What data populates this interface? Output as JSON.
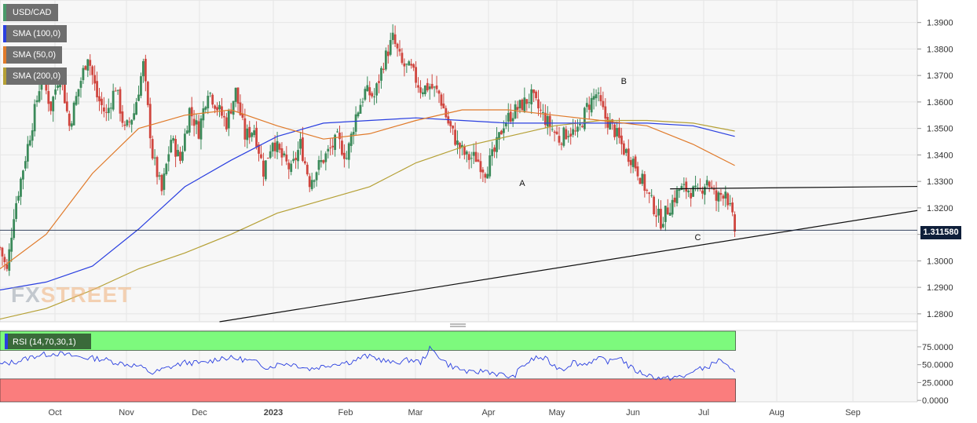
{
  "legend": [
    {
      "label": "USD/CAD",
      "color": "#4a9a6a"
    },
    {
      "label": "SMA (100,0)",
      "color": "#2a3fe0"
    },
    {
      "label": "SMA (50,0)",
      "color": "#e07a2a"
    },
    {
      "label": "SMA (200,0)",
      "color": "#b5a035"
    }
  ],
  "logo": {
    "part1": "FX",
    "part2": "STREET"
  },
  "current_price_label": "1.311580",
  "rsi_label": "RSI (14,70,30,1)",
  "annotations": [
    "A",
    "B",
    "C"
  ],
  "chart_data": {
    "type": "candlestick",
    "y_ticks": [
      "1.3900",
      "1.3800",
      "1.3700",
      "1.3600",
      "1.3500",
      "1.3400",
      "1.3300",
      "1.3200",
      "1.3100",
      "1.3000",
      "1.2900",
      "1.2800"
    ],
    "y_range": [
      1.277,
      1.3985
    ],
    "x_ticks": [
      "Oct",
      "Nov",
      "Dec",
      "2023",
      "Feb",
      "Mar",
      "Apr",
      "May",
      "Jun",
      "Jul",
      "Aug",
      "Sep"
    ],
    "current_price": 1.31158,
    "close_path": [
      [
        0,
        1.305
      ],
      [
        3,
        1.296
      ],
      [
        6,
        1.318
      ],
      [
        10,
        1.335
      ],
      [
        14,
        1.352
      ],
      [
        18,
        1.37
      ],
      [
        22,
        1.358
      ],
      [
        26,
        1.372
      ],
      [
        30,
        1.351
      ],
      [
        34,
        1.365
      ],
      [
        38,
        1.378
      ],
      [
        42,
        1.362
      ],
      [
        46,
        1.355
      ],
      [
        50,
        1.366
      ],
      [
        54,
        1.349
      ],
      [
        58,
        1.356
      ],
      [
        62,
        1.374
      ],
      [
        66,
        1.34
      ],
      [
        70,
        1.326
      ],
      [
        74,
        1.346
      ],
      [
        78,
        1.338
      ],
      [
        82,
        1.357
      ],
      [
        86,
        1.349
      ],
      [
        90,
        1.365
      ],
      [
        94,
        1.358
      ],
      [
        98,
        1.352
      ],
      [
        102,
        1.364
      ],
      [
        106,
        1.347
      ],
      [
        110,
        1.35
      ],
      [
        114,
        1.334
      ],
      [
        118,
        1.346
      ],
      [
        122,
        1.339
      ],
      [
        126,
        1.334
      ],
      [
        130,
        1.344
      ],
      [
        134,
        1.33
      ],
      [
        138,
        1.336
      ],
      [
        142,
        1.341
      ],
      [
        146,
        1.346
      ],
      [
        150,
        1.339
      ],
      [
        154,
        1.355
      ],
      [
        158,
        1.364
      ],
      [
        162,
        1.362
      ],
      [
        166,
        1.375
      ],
      [
        170,
        1.384
      ],
      [
        174,
        1.374
      ],
      [
        178,
        1.372
      ],
      [
        182,
        1.365
      ],
      [
        186,
        1.366
      ],
      [
        190,
        1.363
      ],
      [
        194,
        1.352
      ],
      [
        198,
        1.344
      ],
      [
        202,
        1.339
      ],
      [
        206,
        1.339
      ],
      [
        210,
        1.334
      ],
      [
        214,
        1.341
      ],
      [
        218,
        1.352
      ],
      [
        222,
        1.356
      ],
      [
        226,
        1.359
      ],
      [
        230,
        1.362
      ],
      [
        234,
        1.356
      ],
      [
        238,
        1.351
      ],
      [
        242,
        1.346
      ],
      [
        246,
        1.349
      ],
      [
        250,
        1.348
      ],
      [
        254,
        1.358
      ],
      [
        258,
        1.363
      ],
      [
        262,
        1.354
      ],
      [
        266,
        1.349
      ],
      [
        270,
        1.342
      ],
      [
        274,
        1.338
      ],
      [
        278,
        1.33
      ],
      [
        282,
        1.322
      ],
      [
        286,
        1.315
      ],
      [
        290,
        1.321
      ],
      [
        294,
        1.327
      ],
      [
        298,
        1.327
      ],
      [
        302,
        1.325
      ],
      [
        306,
        1.331
      ],
      [
        310,
        1.323
      ],
      [
        314,
        1.327
      ],
      [
        318,
        1.3116
      ]
    ],
    "sma100": [
      [
        0,
        1.289
      ],
      [
        20,
        1.292
      ],
      [
        40,
        1.298
      ],
      [
        60,
        1.312
      ],
      [
        80,
        1.328
      ],
      [
        100,
        1.338
      ],
      [
        120,
        1.347
      ],
      [
        140,
        1.352
      ],
      [
        160,
        1.353
      ],
      [
        180,
        1.354
      ],
      [
        200,
        1.353
      ],
      [
        220,
        1.352
      ],
      [
        240,
        1.352
      ],
      [
        260,
        1.352
      ],
      [
        280,
        1.352
      ],
      [
        300,
        1.351
      ],
      [
        318,
        1.347
      ]
    ],
    "sma50": [
      [
        0,
        1.297
      ],
      [
        20,
        1.31
      ],
      [
        40,
        1.333
      ],
      [
        60,
        1.35
      ],
      [
        80,
        1.355
      ],
      [
        100,
        1.357
      ],
      [
        120,
        1.351
      ],
      [
        140,
        1.346
      ],
      [
        160,
        1.348
      ],
      [
        180,
        1.353
      ],
      [
        200,
        1.357
      ],
      [
        220,
        1.357
      ],
      [
        240,
        1.355
      ],
      [
        260,
        1.353
      ],
      [
        280,
        1.351
      ],
      [
        300,
        1.344
      ],
      [
        318,
        1.336
      ]
    ],
    "sma200": [
      [
        0,
        1.278
      ],
      [
        20,
        1.282
      ],
      [
        40,
        1.289
      ],
      [
        60,
        1.297
      ],
      [
        80,
        1.303
      ],
      [
        100,
        1.31
      ],
      [
        120,
        1.318
      ],
      [
        140,
        1.323
      ],
      [
        160,
        1.328
      ],
      [
        180,
        1.337
      ],
      [
        200,
        1.343
      ],
      [
        220,
        1.347
      ],
      [
        240,
        1.351
      ],
      [
        260,
        1.353
      ],
      [
        280,
        1.353
      ],
      [
        300,
        1.352
      ],
      [
        318,
        1.349
      ]
    ],
    "trendline_rising": [
      [
        95,
        1.277
      ],
      [
        397,
        1.319
      ]
    ],
    "neckline": [
      [
        290,
        1.3272
      ],
      [
        397,
        1.3281
      ]
    ],
    "annotation_points": [
      {
        "label": "A",
        "t": 226,
        "y": 1.3295
      },
      {
        "label": "B",
        "t": 270,
        "y": 1.368
      },
      {
        "label": "C",
        "t": 302,
        "y": 1.309
      }
    ],
    "rsi": {
      "y_ticks": [
        "75.0000",
        "50.0000",
        "25.0000",
        "0.0000"
      ],
      "y_range": [
        -2,
        98
      ],
      "overbought": 70,
      "oversold": 30,
      "values": [
        [
          0,
          50
        ],
        [
          8,
          55
        ],
        [
          16,
          63
        ],
        [
          24,
          66
        ],
        [
          30,
          63
        ],
        [
          36,
          60
        ],
        [
          44,
          58
        ],
        [
          52,
          52
        ],
        [
          60,
          48
        ],
        [
          66,
          38
        ],
        [
          72,
          45
        ],
        [
          80,
          53
        ],
        [
          88,
          52
        ],
        [
          96,
          60
        ],
        [
          104,
          58
        ],
        [
          110,
          54
        ],
        [
          116,
          46
        ],
        [
          122,
          52
        ],
        [
          128,
          50
        ],
        [
          134,
          44
        ],
        [
          140,
          48
        ],
        [
          146,
          52
        ],
        [
          152,
          54
        ],
        [
          158,
          62
        ],
        [
          162,
          60
        ],
        [
          166,
          56
        ],
        [
          170,
          52
        ],
        [
          174,
          55
        ],
        [
          178,
          57
        ],
        [
          182,
          53
        ],
        [
          186,
          72
        ],
        [
          190,
          62
        ],
        [
          194,
          50
        ],
        [
          198,
          45
        ],
        [
          204,
          38
        ],
        [
          210,
          42
        ],
        [
          214,
          38
        ],
        [
          218,
          35
        ],
        [
          222,
          32
        ],
        [
          226,
          48
        ],
        [
          232,
          60
        ],
        [
          236,
          58
        ],
        [
          240,
          48
        ],
        [
          244,
          44
        ],
        [
          248,
          54
        ],
        [
          252,
          50
        ],
        [
          256,
          55
        ],
        [
          260,
          58
        ],
        [
          264,
          54
        ],
        [
          268,
          62
        ],
        [
          272,
          48
        ],
        [
          276,
          40
        ],
        [
          280,
          36
        ],
        [
          284,
          32
        ],
        [
          288,
          30
        ],
        [
          292,
          33
        ],
        [
          296,
          32
        ],
        [
          300,
          42
        ],
        [
          304,
          44
        ],
        [
          308,
          50
        ],
        [
          312,
          58
        ],
        [
          316,
          42
        ],
        [
          318,
          38
        ]
      ]
    }
  }
}
